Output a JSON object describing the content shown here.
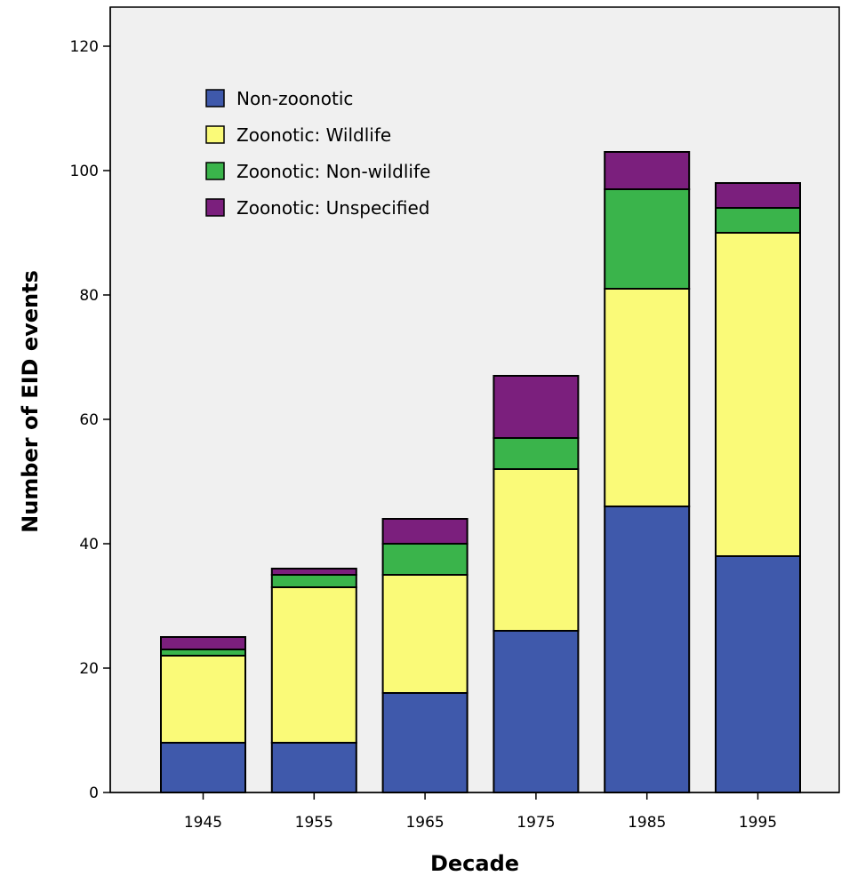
{
  "chart_data": {
    "type": "bar",
    "stacked": true,
    "title": "",
    "xlabel": "Decade",
    "ylabel": "Number of EID events",
    "categories": [
      "1945",
      "1955",
      "1965",
      "1975",
      "1985",
      "1995"
    ],
    "ylim": [
      0,
      125
    ],
    "yticks": [
      0,
      20,
      40,
      60,
      80,
      100,
      120
    ],
    "grid": false,
    "legend_position": "top-left",
    "series": [
      {
        "name": "Non-zoonotic",
        "color": "#3f59ab",
        "values": [
          8,
          8,
          16,
          26,
          46,
          38
        ]
      },
      {
        "name": "Zoonotic: Wildlife",
        "color": "#fafa78",
        "values": [
          14,
          25,
          19,
          26,
          35,
          52
        ]
      },
      {
        "name": "Zoonotic: Non-wildlife",
        "color": "#3ab44b",
        "values": [
          1,
          2,
          5,
          5,
          16,
          4
        ]
      },
      {
        "name": "Zoonotic: Unspecified",
        "color": "#7b1f7d",
        "values": [
          2,
          1,
          4,
          10,
          6,
          4
        ]
      }
    ],
    "plot_background": "#f0f0f0"
  }
}
